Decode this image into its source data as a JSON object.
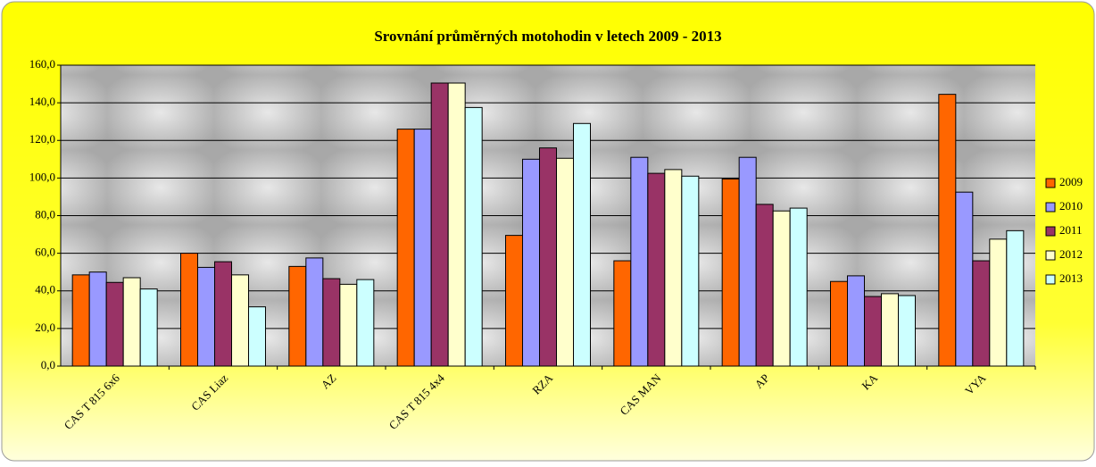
{
  "chart_data": {
    "type": "bar",
    "title": "Srovnání průměrných motohodin v letech 2009 - 2013",
    "categories": [
      "CAS T 815 6x6",
      "CAS Liaz",
      "AZ",
      "CAS T 815 4x4",
      "RZA",
      "CAS MAN",
      "AP",
      "KA",
      "VYA"
    ],
    "series": [
      {
        "name": "2009",
        "color": "#ff6600",
        "values": [
          48.5,
          60,
          53,
          126,
          69.5,
          56,
          99.5,
          45,
          144.5
        ]
      },
      {
        "name": "2010",
        "color": "#9999ff",
        "values": [
          50,
          52.5,
          57.5,
          126,
          110,
          111,
          111,
          48,
          92.5
        ]
      },
      {
        "name": "2011",
        "color": "#993366",
        "values": [
          44.5,
          55.5,
          46.5,
          150.5,
          116,
          102.5,
          86,
          37,
          56
        ]
      },
      {
        "name": "2012",
        "color": "#ffffcc",
        "values": [
          47,
          48.5,
          43.5,
          150.5,
          110.5,
          104.5,
          82.5,
          38.5,
          67.5
        ]
      },
      {
        "name": "2013",
        "color": "#ccffff",
        "values": [
          41,
          31.5,
          46,
          137.5,
          129,
          101,
          84,
          37.5,
          72
        ]
      }
    ],
    "ylim": [
      0,
      160
    ],
    "yticks": [
      {
        "value": 0,
        "label": "0,0"
      },
      {
        "value": 20,
        "label": "20,0"
      },
      {
        "value": 40,
        "label": "40,0"
      },
      {
        "value": 60,
        "label": "60,0"
      },
      {
        "value": 80,
        "label": "80,0"
      },
      {
        "value": 100,
        "label": "100,0"
      },
      {
        "value": 120,
        "label": "120,0"
      },
      {
        "value": 140,
        "label": "140,0"
      },
      {
        "value": 160,
        "label": "160,0"
      }
    ],
    "grid": true,
    "legend": "right"
  }
}
